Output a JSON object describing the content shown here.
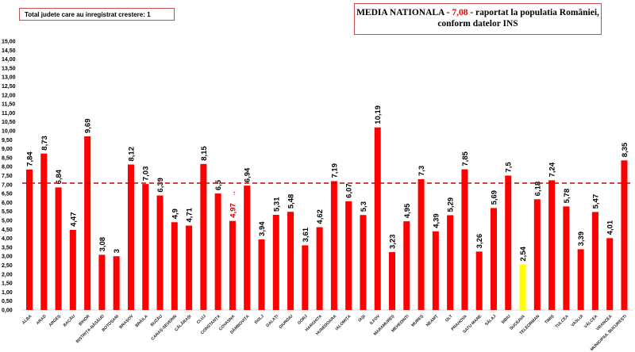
{
  "header": {
    "total_label": "Total judete care au inregistrat crestere: 1",
    "media_prefix": "MEDIA NATIONALA - ",
    "media_value": "7,08",
    "media_suffix": " -  raportat la populatia României,",
    "media_line2": "conform datelor INS"
  },
  "chart_data": {
    "type": "bar",
    "title": "",
    "xlabel": "",
    "ylabel": "",
    "ylim": [
      0,
      15
    ],
    "ytick_step": 0.5,
    "reference_line": {
      "value": 7.08,
      "label": "MEDIA NATIONALA",
      "style": "dashed"
    },
    "categories": [
      "ALBA",
      "ARAD",
      "ARGEȘ",
      "BACĂU",
      "BIHOR",
      "BISTRIȚA-NĂSĂUD",
      "BOTOȘANI",
      "BRAȘOV",
      "BRĂILA",
      "BUZĂU",
      "CARAȘ-SEVERIN",
      "CĂLĂRAȘI",
      "CLUJ",
      "CONSTANȚA",
      "COVASNA",
      "DÂMBOVIȚA",
      "DOLJ",
      "GALAȚI",
      "GIURGIU",
      "GORJ",
      "HARGHITA",
      "HUNEDOARA",
      "IALOMIȚA",
      "IAȘI",
      "ILFOV",
      "MARAMUREȘ",
      "MEHEDINȚI",
      "MUREȘ",
      "NEAMȚ",
      "OLT",
      "PRAHOVA",
      "SATU MARE",
      "SĂLAJ",
      "SIBIU",
      "SUCEAVA",
      "TELEORMAN",
      "TIMIȘ",
      "TULCEA",
      "VASLUI",
      "VÂLCEA",
      "VRANCEA",
      "MUNICIPIUL BUCUREȘTI"
    ],
    "values": [
      7.84,
      8.73,
      6.84,
      4.47,
      9.69,
      3.08,
      3,
      8.12,
      7.03,
      6.39,
      4.9,
      4.71,
      8.15,
      6.5,
      4.97,
      6.94,
      3.94,
      5.31,
      5.48,
      3.61,
      4.62,
      7.19,
      6.07,
      5.3,
      10.19,
      3.23,
      4.95,
      7.3,
      4.39,
      5.29,
      7.85,
      3.26,
      5.69,
      7.5,
      2.54,
      6.18,
      7.24,
      5.78,
      3.39,
      5.47,
      4.01,
      8.35
    ],
    "increased": [
      "COVASNA"
    ],
    "lowest": "SUCEAVA",
    "colors": {
      "bar": "#ff0000",
      "lowest": "#ffff00",
      "reference": "#cc0000",
      "increase_label": "#cc0000"
    }
  }
}
